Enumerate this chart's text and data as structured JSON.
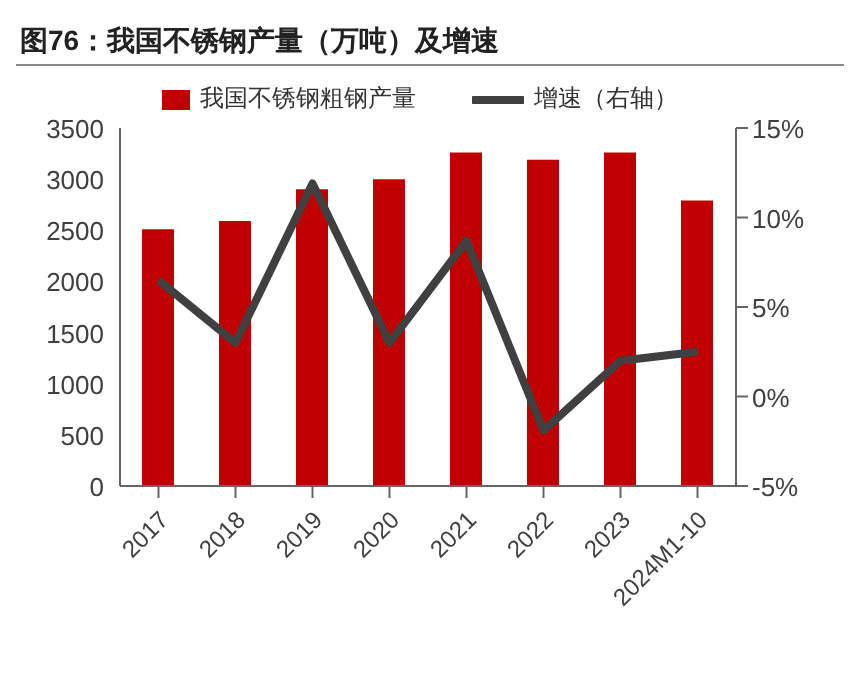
{
  "chart_data": {
    "type": "bar",
    "title": "图76：我国不锈钢产量（万吨）及增速",
    "categories": [
      "2017",
      "2018",
      "2019",
      "2020",
      "2021",
      "2022",
      "2023",
      "2024M1-10"
    ],
    "series": [
      {
        "name": "我国不锈钢粗钢产量",
        "color": "#c00000",
        "values": [
          2510,
          2590,
          2900,
          3000,
          3260,
          3190,
          3260,
          2790
        ]
      },
      {
        "name": "增速（右轴）",
        "type": "line",
        "axis": "y2",
        "color": "#404040",
        "values": [
          6.5,
          3.0,
          11.9,
          3.0,
          8.7,
          -1.9,
          2.0,
          2.5
        ]
      }
    ],
    "ylim": [
      0,
      3500
    ],
    "yticks": [
      0,
      500,
      1000,
      1500,
      2000,
      2500,
      3000,
      3500
    ],
    "y2lim": [
      -5,
      15
    ],
    "y2ticks": [
      {
        "value": -5,
        "label": "-5%"
      },
      {
        "value": 0,
        "label": "0%"
      },
      {
        "value": 5,
        "label": "5%"
      },
      {
        "value": 10,
        "label": "10%"
      },
      {
        "value": 15,
        "label": "15%"
      }
    ],
    "grid": false,
    "legend": "top",
    "marker": "none",
    "line_style": "solid"
  }
}
